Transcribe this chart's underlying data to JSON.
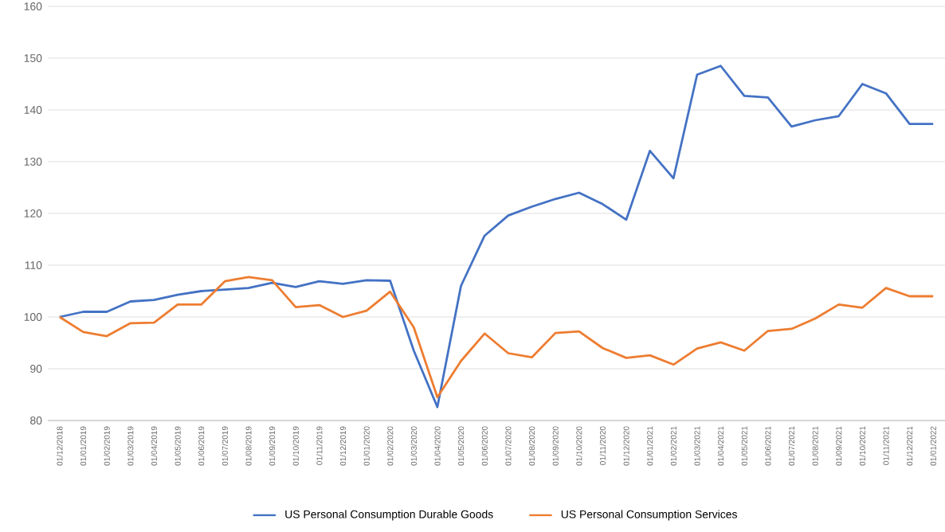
{
  "chart_data": {
    "type": "line",
    "categories": [
      "01/12/2018",
      "01/01/2019",
      "01/02/2019",
      "01/03/2019",
      "01/04/2019",
      "01/05/2019",
      "01/06/2019",
      "01/07/2019",
      "01/08/2019",
      "01/09/2019",
      "01/10/2019",
      "01/11/2019",
      "01/12/2019",
      "01/01/2020",
      "01/02/2020",
      "01/03/2020",
      "01/04/2020",
      "01/05/2020",
      "01/06/2020",
      "01/07/2020",
      "01/08/2020",
      "01/09/2020",
      "01/10/2020",
      "01/11/2020",
      "01/12/2020",
      "01/01/2021",
      "01/02/2021",
      "01/03/2021",
      "01/04/2021",
      "01/05/2021",
      "01/06/2021",
      "01/07/2021",
      "01/08/2021",
      "01/09/2021",
      "01/10/2021",
      "01/11/2021",
      "01/12/2021",
      "01/01/2022"
    ],
    "series": [
      {
        "name": "US Personal Consumption Durable Goods",
        "color": "#4472c4",
        "values": [
          100,
          101,
          101,
          103,
          103.3,
          104.3,
          105,
          105.3,
          105.6,
          106.6,
          105.8,
          106.9,
          106.4,
          107.1,
          107,
          93.5,
          82.6,
          106,
          115.7,
          119.6,
          121.3,
          122.8,
          124,
          121.8,
          118.8,
          132.1,
          126.8,
          146.8,
          148.5,
          142.7,
          142.4,
          136.8,
          138,
          138.8,
          145,
          143.2,
          137.3,
          137.3
        ]
      },
      {
        "name": "US Personal Consumption Services",
        "color": "#ed7d31",
        "values": [
          100,
          97.1,
          96.3,
          98.8,
          98.9,
          102.4,
          102.4,
          106.9,
          107.7,
          107.1,
          101.9,
          102.3,
          100,
          101.2,
          104.9,
          98,
          84.5,
          91.5,
          96.8,
          93,
          92.2,
          96.9,
          97.2,
          94,
          92.1,
          92.6,
          90.8,
          93.9,
          95.1,
          93.5,
          97.3,
          97.7,
          99.7,
          102.4,
          101.8,
          105.6,
          104,
          104
        ]
      }
    ],
    "ylim": [
      80,
      160
    ],
    "yticks": [
      80,
      90,
      100,
      110,
      120,
      130,
      140,
      150,
      160
    ],
    "grid": "y",
    "legend": "bottom",
    "marker": "none",
    "line_style": "solid"
  }
}
